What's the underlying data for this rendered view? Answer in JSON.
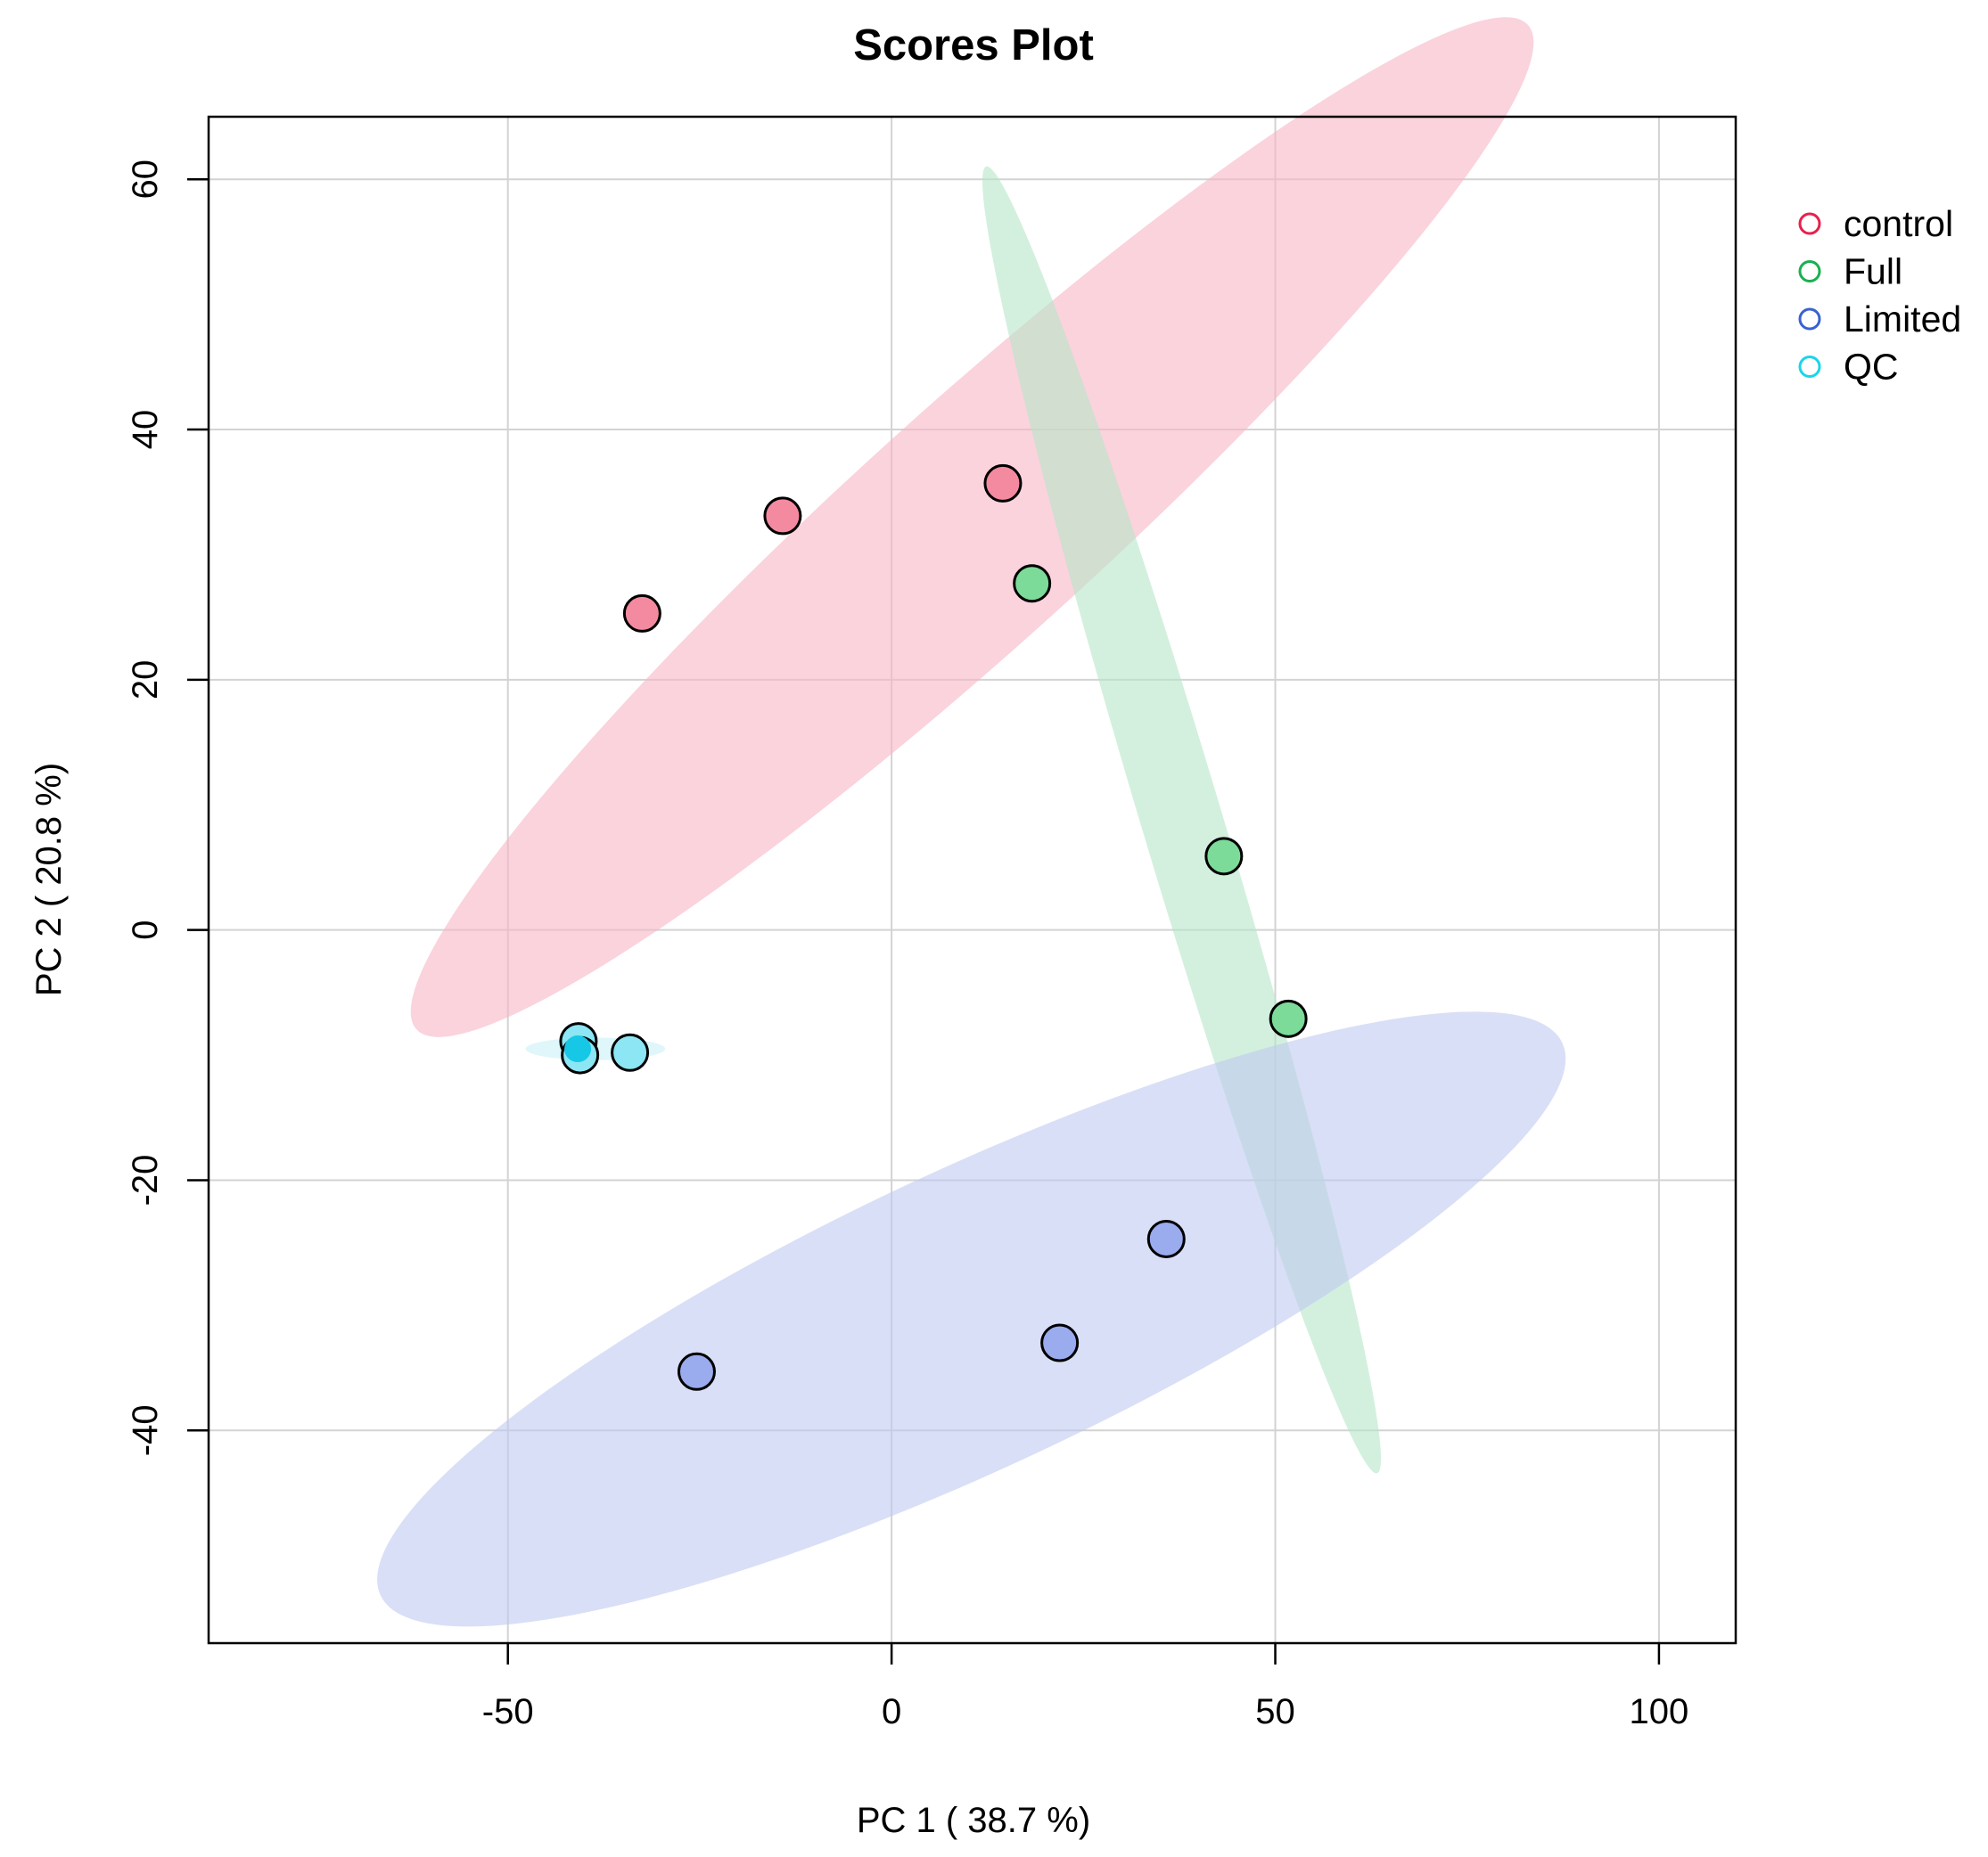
{
  "chart_data": {
    "type": "scatter",
    "title": "Scores Plot",
    "xlabel": "PC 1 ( 38.7 %)",
    "ylabel": "PC 2 ( 20.8 %)",
    "xlim": [
      -89,
      110
    ],
    "ylim": [
      -57,
      65
    ],
    "xticks": [
      -50,
      0,
      50,
      100
    ],
    "yticks": [
      -40,
      -20,
      0,
      20,
      40,
      60
    ],
    "grid": true,
    "legend_position": "top-right outside",
    "series": [
      {
        "name": "control",
        "color": "#e8214f",
        "fill": "#f48aa0",
        "ellipse_fill": "#f7b6c6",
        "points": [
          [
            -32.5,
            25.3
          ],
          [
            -14.2,
            33.1
          ],
          [
            14.5,
            35.7
          ]
        ],
        "ellipse": {
          "center": [
            10.5,
            32.2
          ],
          "semi_axes_data": [
            82.8,
            10.3
          ],
          "angle_deg": 29
        }
      },
      {
        "name": "Full",
        "color": "#19b04f",
        "fill": "#7ddb9a",
        "ellipse_fill": "#b5e6c8",
        "points": [
          [
            18.3,
            27.7
          ],
          [
            43.3,
            5.9
          ],
          [
            51.7,
            -7.1
          ]
        ],
        "ellipse": {
          "center": [
            37.8,
            8.8
          ],
          "semi_axes_data": [
            58.1,
            4.6
          ],
          "angle_deg": -64
        }
      },
      {
        "name": "Limited",
        "color": "#3a62d0",
        "fill": "#9aabee",
        "ellipse_fill": "#bfc9f0",
        "points": [
          [
            -25.4,
            -35.3
          ],
          [
            21.9,
            -33.0
          ],
          [
            35.8,
            -24.7
          ]
        ],
        "ellipse": {
          "center": [
            10.4,
            -31.1
          ],
          "semi_axes_data": [
            80.1,
            12.2
          ],
          "angle_deg": 16
        }
      },
      {
        "name": "QC",
        "color": "#1ad6e8",
        "fill": "#8ce6f4",
        "fill_highlight": "#16c8e6",
        "ellipse_fill": "#c9f0f7",
        "points": [
          [
            -40.8,
            -8.9
          ],
          [
            -40.6,
            -10.0
          ],
          [
            -34.1,
            -9.8
          ],
          [
            -40.9,
            -9.5
          ]
        ],
        "ellipse": {
          "center": [
            -38.6,
            -9.5
          ],
          "semi_axes_data": [
            9.1,
            0.9
          ],
          "angle_deg": 0
        }
      }
    ]
  }
}
